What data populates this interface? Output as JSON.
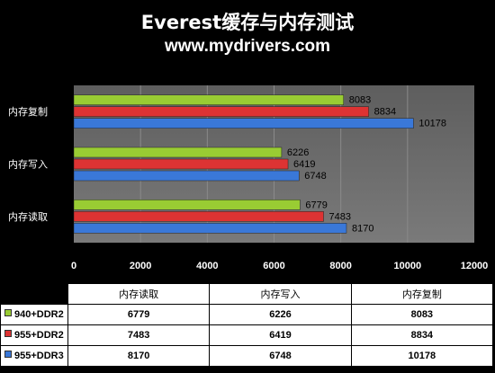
{
  "chart_data": {
    "type": "bar",
    "orientation": "horizontal",
    "title": "Everest缓存与内存测试",
    "subtitle": "www.mydrivers.com",
    "categories": [
      "内存复制",
      "内存写入",
      "内存读取"
    ],
    "series": [
      {
        "name": "940+DDR2",
        "color": "#99cc33",
        "values": [
          8083,
          6226,
          6779
        ]
      },
      {
        "name": "955+DDR2",
        "color": "#dd3333",
        "values": [
          8834,
          6419,
          7483
        ]
      },
      {
        "name": "955+DDR3",
        "color": "#3a78d8",
        "values": [
          10178,
          6748,
          8170
        ]
      }
    ],
    "xlim": [
      0,
      12000
    ],
    "xticks": [
      "0",
      "2000",
      "4000",
      "6000",
      "8000",
      "10000",
      "12000"
    ],
    "grid": true,
    "data_table": {
      "columns": [
        "内存读取",
        "内存写入",
        "内存复制"
      ],
      "rows": [
        {
          "name": "940+DDR2",
          "color": "#99cc33",
          "values": [
            "6779",
            "6226",
            "8083"
          ]
        },
        {
          "name": "955+DDR2",
          "color": "#dd3333",
          "values": [
            "7483",
            "6419",
            "8834"
          ]
        },
        {
          "name": "955+DDR3",
          "color": "#3a78d8",
          "values": [
            "8170",
            "6748",
            "10178"
          ]
        }
      ]
    }
  }
}
